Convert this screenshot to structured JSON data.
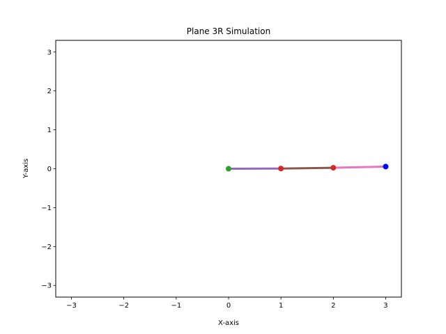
{
  "chart_data": {
    "type": "line",
    "title": "Plane 3R Simulation",
    "xlabel": "X-axis",
    "ylabel": "Y-axis",
    "xlim": [
      -3.3,
      3.3
    ],
    "ylim": [
      -3.3,
      3.3
    ],
    "xticks": [
      -3,
      -2,
      -1,
      0,
      1,
      2,
      3
    ],
    "yticks": [
      -3,
      -2,
      -1,
      0,
      1,
      2,
      3
    ],
    "xtick_labels": [
      "−3",
      "−2",
      "−1",
      "0",
      "1",
      "2",
      "3"
    ],
    "ytick_labels": [
      "−3",
      "−2",
      "−1",
      "0",
      "1",
      "2",
      "3"
    ],
    "grid": false,
    "links": [
      {
        "from": [
          0,
          0
        ],
        "to": [
          1,
          0.005
        ],
        "color": "#9467bd"
      },
      {
        "from": [
          1,
          0.005
        ],
        "to": [
          2,
          0.025
        ],
        "color": "#8c564b"
      },
      {
        "from": [
          2,
          0.025
        ],
        "to": [
          3,
          0.055
        ],
        "color": "#e377c2"
      }
    ],
    "joints": [
      {
        "x": 0,
        "y": 0,
        "color": "#2ca02c"
      },
      {
        "x": 1,
        "y": 0.005,
        "color": "#d62728"
      },
      {
        "x": 2,
        "y": 0.025,
        "color": "#d62728"
      }
    ],
    "end_effector": {
      "x": 3,
      "y": 0.055,
      "color": "#0000ff"
    }
  }
}
